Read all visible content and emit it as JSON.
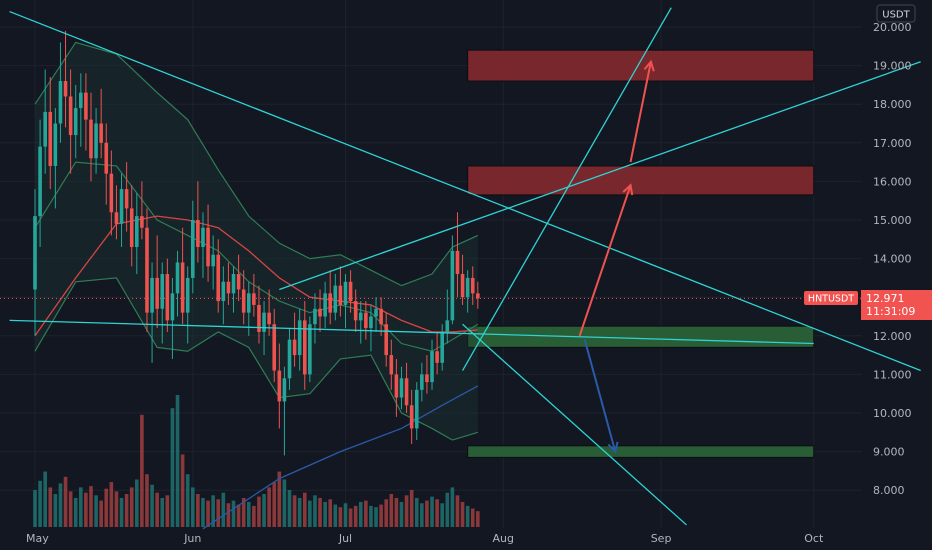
{
  "symbol": "HNTUSDT",
  "currency": "USDT",
  "price_label": "12.971",
  "countdown": "11:31:09",
  "colors": {
    "background": "#131722",
    "grid": "#1e222d",
    "up": "#26a69a",
    "down": "#ef5350",
    "trendline": "#2ed3d3",
    "bollinger": "#2e7d55",
    "bollinger_fill": "#1c3a33",
    "ma": "#d64545",
    "ma_long": "#2a5aa8",
    "resistance": "#8b2a2e",
    "support": "#2d6a3a",
    "arrow_up": "#ef5350",
    "arrow_down": "#2a5aa8",
    "axis_text": "#b2b5be",
    "price_tag": "#f05350"
  },
  "chart_data": {
    "type": "candlestick",
    "y_axis": {
      "range": [
        7.0,
        20.4
      ],
      "ticks": [
        "20.000",
        "19.000",
        "18.000",
        "17.000",
        "16.000",
        "15.000",
        "14.000",
        "13.000",
        "12.000",
        "11.000",
        "10.000",
        "9.000",
        "8.000"
      ],
      "tick_values": [
        20,
        19,
        18,
        17,
        16,
        15,
        14,
        13,
        12,
        11,
        10,
        9,
        8
      ]
    },
    "x_axis": {
      "ticks": [
        "May",
        "Jun",
        "Jul",
        "Aug",
        "Sep",
        "Oct"
      ],
      "tick_days": [
        0,
        31,
        61,
        92,
        123,
        153
      ]
    },
    "last_price": 12.971,
    "zones": [
      {
        "kind": "resistance",
        "from": 18.6,
        "to": 19.4,
        "x_start_day": 85,
        "x_end_day": 153
      },
      {
        "kind": "resistance",
        "from": 15.65,
        "to": 16.4,
        "x_start_day": 85,
        "x_end_day": 153
      },
      {
        "kind": "support",
        "from": 11.7,
        "to": 12.25,
        "x_start_day": 85,
        "x_end_day": 153
      },
      {
        "kind": "support",
        "from": 8.85,
        "to": 9.15,
        "x_start_day": 85,
        "x_end_day": 153
      }
    ],
    "trendlines": [
      {
        "from": [
          -5,
          20.4
        ],
        "to": [
          174,
          11.1
        ]
      },
      {
        "from": [
          -5,
          12.4
        ],
        "to": [
          153,
          11.8
        ]
      },
      {
        "from": [
          48,
          13.2
        ],
        "to": [
          174,
          19.1
        ]
      },
      {
        "from": [
          84,
          12.3
        ],
        "to": [
          128,
          7.1
        ]
      },
      {
        "from": [
          84,
          11.1
        ],
        "to": [
          125,
          20.5
        ]
      }
    ],
    "arrows": [
      {
        "color": "up",
        "from": [
          107,
          12.0
        ],
        "to": [
          117,
          15.9
        ]
      },
      {
        "color": "up",
        "from": [
          117,
          16.5
        ],
        "to": [
          121,
          19.1
        ]
      },
      {
        "color": "down",
        "from": [
          108,
          11.9
        ],
        "to": [
          114,
          9.0
        ]
      }
    ],
    "candles": [
      [
        0,
        13.2,
        15.8,
        12.0,
        15.1
      ],
      [
        1,
        15.1,
        17.6,
        14.3,
        16.9
      ],
      [
        2,
        16.9,
        18.9,
        16.2,
        17.8
      ],
      [
        3,
        17.8,
        18.7,
        15.8,
        16.4
      ],
      [
        4,
        16.4,
        17.9,
        15.3,
        17.5
      ],
      [
        5,
        17.5,
        19.6,
        17.0,
        18.6
      ],
      [
        6,
        18.6,
        19.9,
        17.4,
        18.2
      ],
      [
        7,
        18.2,
        18.9,
        16.2,
        17.2
      ],
      [
        8,
        17.2,
        18.5,
        16.6,
        17.9
      ],
      [
        9,
        17.9,
        18.8,
        16.9,
        18.3
      ],
      [
        10,
        18.3,
        18.8,
        16.8,
        17.6
      ],
      [
        11,
        17.6,
        18.3,
        16.0,
        16.6
      ],
      [
        12,
        16.6,
        17.9,
        16.2,
        17.5
      ],
      [
        13,
        17.5,
        18.4,
        16.6,
        17.0
      ],
      [
        14,
        17.0,
        17.5,
        15.4,
        16.2
      ],
      [
        15,
        16.2,
        16.8,
        14.6,
        15.2
      ],
      [
        16,
        15.2,
        15.9,
        14.5,
        14.9
      ],
      [
        17,
        14.9,
        16.2,
        14.3,
        15.8
      ],
      [
        18,
        15.8,
        16.5,
        14.7,
        15.3
      ],
      [
        19,
        15.3,
        15.9,
        13.8,
        14.3
      ],
      [
        20,
        14.3,
        15.7,
        13.6,
        15.1
      ],
      [
        21,
        15.1,
        16.0,
        14.5,
        14.8
      ],
      [
        22,
        14.8,
        15.3,
        12.1,
        12.6
      ],
      [
        23,
        12.6,
        13.9,
        11.3,
        13.5
      ],
      [
        24,
        13.5,
        14.6,
        12.2,
        12.7
      ],
      [
        25,
        12.7,
        13.9,
        11.8,
        13.6
      ],
      [
        26,
        13.6,
        14.0,
        12.1,
        12.4
      ],
      [
        27,
        12.4,
        13.5,
        11.4,
        13.1
      ],
      [
        28,
        13.1,
        14.2,
        12.5,
        13.9
      ],
      [
        29,
        13.9,
        14.8,
        12.3,
        12.6
      ],
      [
        30,
        12.6,
        13.8,
        11.8,
        13.5
      ],
      [
        31,
        13.5,
        15.5,
        13.1,
        15.0
      ],
      [
        32,
        15.0,
        16.0,
        13.9,
        14.3
      ],
      [
        33,
        14.3,
        15.2,
        13.5,
        14.8
      ],
      [
        34,
        14.8,
        15.4,
        13.4,
        13.8
      ],
      [
        35,
        13.8,
        14.6,
        13.2,
        14.1
      ],
      [
        36,
        14.1,
        14.5,
        12.6,
        12.9
      ],
      [
        37,
        12.9,
        13.8,
        12.3,
        13.4
      ],
      [
        38,
        13.4,
        13.9,
        12.8,
        13.1
      ],
      [
        39,
        13.1,
        13.8,
        12.6,
        13.6
      ],
      [
        40,
        13.6,
        14.1,
        12.9,
        13.2
      ],
      [
        41,
        13.2,
        13.7,
        12.3,
        12.6
      ],
      [
        42,
        12.6,
        13.4,
        12.0,
        13.1
      ],
      [
        43,
        13.1,
        13.6,
        12.5,
        12.8
      ],
      [
        44,
        12.8,
        13.3,
        11.8,
        12.1
      ],
      [
        45,
        12.1,
        12.9,
        11.5,
        12.6
      ],
      [
        46,
        12.6,
        13.2,
        12.0,
        12.3
      ],
      [
        47,
        12.3,
        12.7,
        10.8,
        11.1
      ],
      [
        48,
        11.1,
        11.8,
        9.6,
        10.3
      ],
      [
        49,
        10.3,
        11.2,
        8.9,
        10.9
      ],
      [
        50,
        10.9,
        12.2,
        10.6,
        11.9
      ],
      [
        51,
        11.9,
        12.6,
        11.2,
        11.5
      ],
      [
        52,
        11.5,
        12.7,
        11.1,
        12.4
      ],
      [
        53,
        12.4,
        12.9,
        10.6,
        11.0
      ],
      [
        54,
        11.0,
        12.5,
        10.8,
        12.3
      ],
      [
        55,
        12.3,
        13.1,
        11.8,
        12.7
      ],
      [
        56,
        12.7,
        13.2,
        12.1,
        12.5
      ],
      [
        57,
        12.5,
        13.4,
        12.2,
        13.1
      ],
      [
        58,
        13.1,
        13.7,
        12.3,
        12.6
      ],
      [
        59,
        12.6,
        13.6,
        12.4,
        13.3
      ],
      [
        60,
        13.3,
        13.8,
        12.5,
        12.8
      ],
      [
        61,
        12.8,
        13.6,
        12.2,
        13.4
      ],
      [
        62,
        13.4,
        13.7,
        12.6,
        12.9
      ],
      [
        63,
        12.9,
        13.2,
        12.1,
        12.4
      ],
      [
        64,
        12.4,
        12.9,
        11.8,
        12.6
      ],
      [
        65,
        12.6,
        12.9,
        11.9,
        12.2
      ],
      [
        66,
        12.2,
        12.8,
        11.6,
        12.5
      ],
      [
        67,
        12.5,
        13.0,
        12.1,
        12.7
      ],
      [
        68,
        12.7,
        13.0,
        12.0,
        12.3
      ],
      [
        69,
        12.3,
        12.6,
        11.2,
        11.5
      ],
      [
        70,
        11.5,
        11.9,
        10.6,
        11.0
      ],
      [
        71,
        11.0,
        11.4,
        9.9,
        10.4
      ],
      [
        72,
        10.4,
        11.2,
        10.1,
        10.9
      ],
      [
        73,
        10.9,
        11.3,
        10.0,
        10.2
      ],
      [
        74,
        10.2,
        10.6,
        9.2,
        9.6
      ],
      [
        75,
        9.6,
        10.8,
        9.3,
        10.6
      ],
      [
        76,
        10.6,
        11.3,
        10.3,
        11.0
      ],
      [
        77,
        11.0,
        11.5,
        10.5,
        10.8
      ],
      [
        78,
        10.8,
        11.9,
        10.6,
        11.6
      ],
      [
        79,
        11.6,
        12.1,
        11.0,
        11.3
      ],
      [
        80,
        11.3,
        12.3,
        11.1,
        12.1
      ],
      [
        81,
        12.1,
        13.2,
        11.8,
        12.4
      ],
      [
        82,
        12.4,
        14.6,
        12.3,
        14.2
      ],
      [
        83,
        14.2,
        15.2,
        13.0,
        13.6
      ],
      [
        84,
        13.6,
        14.1,
        12.8,
        13.0
      ],
      [
        85,
        13.0,
        13.7,
        12.6,
        13.5
      ],
      [
        86,
        13.5,
        13.8,
        12.8,
        13.1
      ],
      [
        87,
        13.1,
        13.4,
        12.7,
        12.97
      ]
    ],
    "bollinger": {
      "upper": [
        [
          0,
          18.0
        ],
        [
          8,
          19.6
        ],
        [
          16,
          19.3
        ],
        [
          24,
          18.3
        ],
        [
          30,
          17.6
        ],
        [
          36,
          16.3
        ],
        [
          42,
          15.1
        ],
        [
          48,
          14.4
        ],
        [
          54,
          14.0
        ],
        [
          60,
          14.1
        ],
        [
          66,
          13.7
        ],
        [
          72,
          13.3
        ],
        [
          78,
          13.6
        ],
        [
          82,
          14.3
        ],
        [
          87,
          14.6
        ]
      ],
      "middle": [
        [
          0,
          14.8
        ],
        [
          8,
          16.5
        ],
        [
          16,
          16.4
        ],
        [
          24,
          15.0
        ],
        [
          30,
          14.6
        ],
        [
          36,
          14.2
        ],
        [
          42,
          13.4
        ],
        [
          48,
          12.9
        ],
        [
          54,
          12.6
        ],
        [
          60,
          12.8
        ],
        [
          66,
          12.6
        ],
        [
          72,
          11.8
        ],
        [
          78,
          11.6
        ],
        [
          82,
          11.9
        ],
        [
          87,
          12.3
        ]
      ],
      "lower": [
        [
          0,
          11.6
        ],
        [
          8,
          13.4
        ],
        [
          16,
          13.5
        ],
        [
          24,
          11.7
        ],
        [
          30,
          11.6
        ],
        [
          36,
          12.1
        ],
        [
          42,
          11.7
        ],
        [
          48,
          10.4
        ],
        [
          54,
          10.5
        ],
        [
          60,
          11.4
        ],
        [
          66,
          11.5
        ],
        [
          72,
          10.0
        ],
        [
          78,
          9.6
        ],
        [
          82,
          9.3
        ],
        [
          87,
          9.5
        ]
      ]
    },
    "ma_short": [
      [
        0,
        12.0
      ],
      [
        8,
        13.5
      ],
      [
        16,
        14.9
      ],
      [
        24,
        15.1
      ],
      [
        30,
        15.0
      ],
      [
        36,
        14.8
      ],
      [
        42,
        14.2
      ],
      [
        48,
        13.5
      ],
      [
        54,
        13.0
      ],
      [
        60,
        12.9
      ],
      [
        66,
        12.8
      ],
      [
        72,
        12.4
      ],
      [
        78,
        12.1
      ],
      [
        82,
        12.1
      ],
      [
        87,
        12.15
      ]
    ],
    "ma_long": [
      [
        33,
        7.0
      ],
      [
        48,
        8.3
      ],
      [
        60,
        9.0
      ],
      [
        72,
        9.6
      ],
      [
        80,
        10.2
      ],
      [
        87,
        10.7
      ]
    ],
    "volume": [
      [
        0,
        0.28
      ],
      [
        1,
        0.35
      ],
      [
        2,
        0.42
      ],
      [
        3,
        0.3
      ],
      [
        4,
        0.25
      ],
      [
        5,
        0.33
      ],
      [
        6,
        0.38
      ],
      [
        7,
        0.27
      ],
      [
        8,
        0.22
      ],
      [
        9,
        0.3
      ],
      [
        10,
        0.26
      ],
      [
        11,
        0.31
      ],
      [
        12,
        0.24
      ],
      [
        13,
        0.2
      ],
      [
        14,
        0.29
      ],
      [
        15,
        0.34
      ],
      [
        16,
        0.27
      ],
      [
        17,
        0.22
      ],
      [
        18,
        0.25
      ],
      [
        19,
        0.3
      ],
      [
        20,
        0.36
      ],
      [
        21,
        0.85
      ],
      [
        22,
        0.4
      ],
      [
        23,
        0.32
      ],
      [
        24,
        0.26
      ],
      [
        25,
        0.22
      ],
      [
        26,
        0.24
      ],
      [
        27,
        0.9
      ],
      [
        28,
        1.0
      ],
      [
        29,
        0.55
      ],
      [
        30,
        0.4
      ],
      [
        31,
        0.3
      ],
      [
        32,
        0.25
      ],
      [
        33,
        0.22
      ],
      [
        34,
        0.2
      ],
      [
        35,
        0.24
      ],
      [
        36,
        0.21
      ],
      [
        37,
        0.26
      ],
      [
        38,
        0.18
      ],
      [
        39,
        0.2
      ],
      [
        40,
        0.17
      ],
      [
        41,
        0.22
      ],
      [
        42,
        0.19
      ],
      [
        43,
        0.16
      ],
      [
        44,
        0.23
      ],
      [
        45,
        0.25
      ],
      [
        46,
        0.3
      ],
      [
        47,
        0.34
      ],
      [
        48,
        0.42
      ],
      [
        49,
        0.36
      ],
      [
        50,
        0.28
      ],
      [
        51,
        0.24
      ],
      [
        52,
        0.22
      ],
      [
        53,
        0.26
      ],
      [
        54,
        0.2
      ],
      [
        55,
        0.24
      ],
      [
        56,
        0.22
      ],
      [
        57,
        0.19
      ],
      [
        58,
        0.21
      ],
      [
        59,
        0.17
      ],
      [
        60,
        0.15
      ],
      [
        61,
        0.18
      ],
      [
        62,
        0.14
      ],
      [
        63,
        0.16
      ],
      [
        64,
        0.19
      ],
      [
        65,
        0.2
      ],
      [
        66,
        0.16
      ],
      [
        67,
        0.15
      ],
      [
        68,
        0.17
      ],
      [
        69,
        0.21
      ],
      [
        70,
        0.25
      ],
      [
        71,
        0.22
      ],
      [
        72,
        0.19
      ],
      [
        73,
        0.24
      ],
      [
        74,
        0.28
      ],
      [
        75,
        0.22
      ],
      [
        76,
        0.18
      ],
      [
        77,
        0.2
      ],
      [
        78,
        0.23
      ],
      [
        79,
        0.21
      ],
      [
        80,
        0.18
      ],
      [
        81,
        0.26
      ],
      [
        82,
        0.3
      ],
      [
        83,
        0.24
      ],
      [
        84,
        0.19
      ],
      [
        85,
        0.16
      ],
      [
        86,
        0.14
      ],
      [
        87,
        0.12
      ]
    ]
  }
}
